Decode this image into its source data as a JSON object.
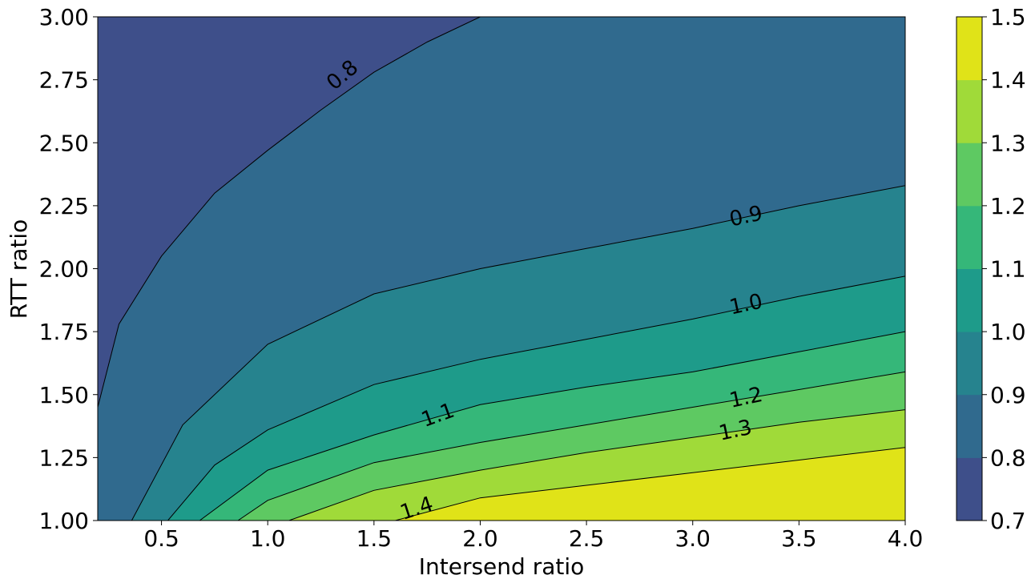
{
  "chart_data": {
    "type": "contourf",
    "xlabel": "Intersend ratio",
    "ylabel": "RTT ratio",
    "xlim": [
      0.2,
      4.0
    ],
    "ylim": [
      1.0,
      3.0
    ],
    "x_ticks": [
      "0.5",
      "1.0",
      "1.5",
      "2.0",
      "2.5",
      "3.0",
      "3.5",
      "4.0"
    ],
    "y_ticks": [
      "1.00",
      "1.25",
      "1.50",
      "1.75",
      "2.00",
      "2.25",
      "2.50",
      "2.75",
      "3.00"
    ],
    "levels": [
      0.7,
      0.8,
      0.9,
      1.0,
      1.1,
      1.2,
      1.3,
      1.4,
      1.5
    ],
    "colorbar_ticks": [
      "0.7",
      "0.8",
      "0.9",
      "1.0",
      "1.1",
      "1.2",
      "1.3",
      "1.4",
      "1.5"
    ],
    "band_colors": [
      "#3e4a89",
      "#31688e",
      "#26828e",
      "#1f9e89",
      "#35b779",
      "#6ece58",
      "#b5de2b",
      "#fde725"
    ],
    "band_colors_observed": [
      "#3e4f8a",
      "#306a8e",
      "#26838e",
      "#1e9b8a",
      "#35b779",
      "#5ec962",
      "#a0da39",
      "#e0e318"
    ],
    "contours": [
      {
        "level": 0.8,
        "label": "0.8",
        "points": [
          [
            0.2,
            1.45
          ],
          [
            0.3,
            1.78
          ],
          [
            0.5,
            2.05
          ],
          [
            0.75,
            2.3
          ],
          [
            1.0,
            2.47
          ],
          [
            1.25,
            2.63
          ],
          [
            1.5,
            2.78
          ],
          [
            1.75,
            2.9
          ],
          [
            2.0,
            3.0
          ]
        ]
      },
      {
        "level": 0.9,
        "label": "0.9",
        "points": [
          [
            0.36,
            1.0
          ],
          [
            0.6,
            1.38
          ],
          [
            1.0,
            1.7
          ],
          [
            1.5,
            1.9
          ],
          [
            2.0,
            2.0
          ],
          [
            2.5,
            2.08
          ],
          [
            3.0,
            2.16
          ],
          [
            3.5,
            2.25
          ],
          [
            4.0,
            2.33
          ]
        ]
      },
      {
        "level": 1.0,
        "label": "1.0",
        "points": [
          [
            0.53,
            1.0
          ],
          [
            0.75,
            1.22
          ],
          [
            1.0,
            1.36
          ],
          [
            1.5,
            1.54
          ],
          [
            2.0,
            1.64
          ],
          [
            2.5,
            1.72
          ],
          [
            3.0,
            1.8
          ],
          [
            3.5,
            1.89
          ],
          [
            4.0,
            1.97
          ]
        ]
      },
      {
        "level": 1.1,
        "label": "1.1",
        "points": [
          [
            0.68,
            1.0
          ],
          [
            1.0,
            1.2
          ],
          [
            1.5,
            1.34
          ],
          [
            2.0,
            1.46
          ],
          [
            2.5,
            1.53
          ],
          [
            3.0,
            1.59
          ],
          [
            3.5,
            1.67
          ],
          [
            4.0,
            1.75
          ]
        ]
      },
      {
        "level": 1.2,
        "label": "1.2",
        "points": [
          [
            0.86,
            1.0
          ],
          [
            1.0,
            1.08
          ],
          [
            1.5,
            1.23
          ],
          [
            2.0,
            1.31
          ],
          [
            2.5,
            1.38
          ],
          [
            3.0,
            1.45
          ],
          [
            3.5,
            1.52
          ],
          [
            4.0,
            1.59
          ]
        ]
      },
      {
        "level": 1.3,
        "label": "1.3",
        "points": [
          [
            1.1,
            1.0
          ],
          [
            1.5,
            1.12
          ],
          [
            2.0,
            1.2
          ],
          [
            2.5,
            1.27
          ],
          [
            3.0,
            1.33
          ],
          [
            3.5,
            1.39
          ],
          [
            4.0,
            1.44
          ]
        ]
      },
      {
        "level": 1.4,
        "label": "1.4",
        "points": [
          [
            1.6,
            1.0
          ],
          [
            2.0,
            1.09
          ],
          [
            2.5,
            1.14
          ],
          [
            3.0,
            1.19
          ],
          [
            3.5,
            1.24
          ],
          [
            4.0,
            1.29
          ]
        ]
      }
    ],
    "contour_labels": [
      {
        "text": "0.8",
        "x": 1.35,
        "y": 2.77,
        "rotation": -40
      },
      {
        "text": "0.9",
        "x": 3.25,
        "y": 2.21,
        "rotation": -12
      },
      {
        "text": "1.0",
        "x": 3.25,
        "y": 1.86,
        "rotation": -12
      },
      {
        "text": "1.1",
        "x": 1.8,
        "y": 1.42,
        "rotation": -20
      },
      {
        "text": "1.2",
        "x": 3.25,
        "y": 1.49,
        "rotation": -12
      },
      {
        "text": "1.3",
        "x": 3.2,
        "y": 1.36,
        "rotation": -12
      },
      {
        "text": "1.4",
        "x": 1.7,
        "y": 1.05,
        "rotation": -18
      }
    ],
    "grid": false,
    "colorbar": "right"
  }
}
